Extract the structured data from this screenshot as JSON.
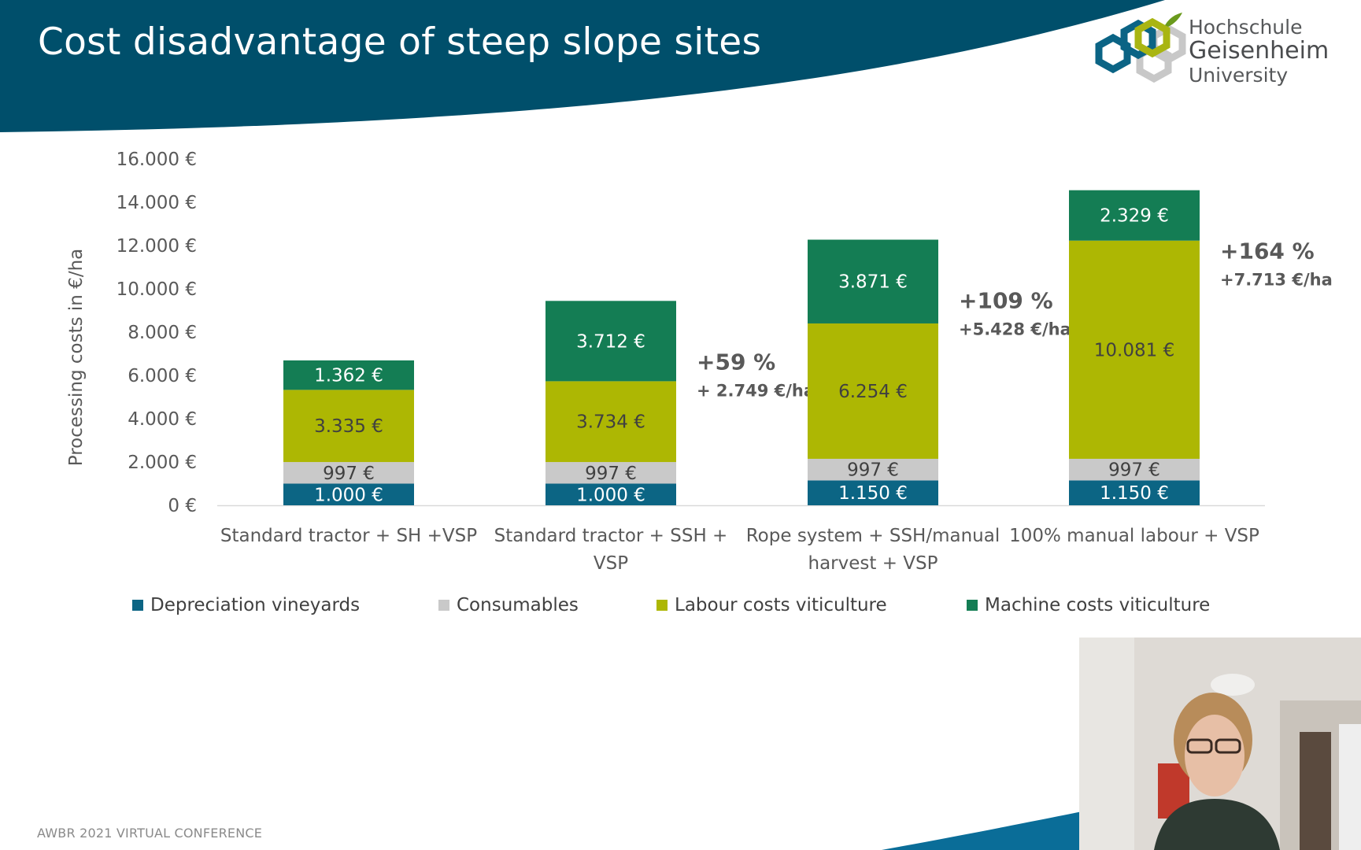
{
  "slide": {
    "title": "Cost disadvantage of steep slope sites",
    "footer": "AWBR 2021 VIRTUAL CONFERENCE",
    "logo": {
      "line1": "Hochschule",
      "line2": "Geisenheim",
      "line3": "University",
      "icon": "hexagon-logo-icon"
    },
    "colors": {
      "header_band": "#004f6b",
      "background": "#ffffff",
      "footer_wave": "#0a6d98"
    }
  },
  "chart_data": {
    "type": "bar",
    "stacked": true,
    "title": "",
    "xlabel": "",
    "ylabel": "Processing costs in €/ha",
    "ylim": [
      0,
      16000
    ],
    "yticks": [
      "16.000 €",
      "14.000 €",
      "12.000 €",
      "10.000 €",
      "8.000 €",
      "6.000 €",
      "4.000 €",
      "2.000 €",
      "0 €"
    ],
    "ytick_values": [
      16000,
      14000,
      12000,
      10000,
      8000,
      6000,
      4000,
      2000,
      0
    ],
    "categories": [
      [
        "Standard tractor + SH +VSP"
      ],
      [
        "Standard tractor + SSH +",
        "VSP"
      ],
      [
        "Rope system + SSH/manual",
        "harvest + VSP"
      ],
      [
        "100% manual labour + VSP"
      ]
    ],
    "series": [
      {
        "name": "Depreciation vineyards",
        "color": "#0c6584",
        "label_color": "#ffffff",
        "values": [
          1000,
          1000,
          1150,
          1150
        ],
        "labels": [
          "1.000 €",
          "1.000 €",
          "1.150 €",
          "1.150 €"
        ]
      },
      {
        "name": "Consumables",
        "color": "#c9c9c9",
        "label_color": "#404040",
        "values": [
          997,
          997,
          997,
          997
        ],
        "labels": [
          "997 €",
          "997 €",
          "997 €",
          "997 €"
        ]
      },
      {
        "name": "Labour costs viticulture",
        "color": "#adb703",
        "label_color": "#404040",
        "values": [
          3335,
          3734,
          6254,
          10081
        ],
        "labels": [
          "3.335 €",
          "3.734 €",
          "6.254 €",
          "10.081 €"
        ]
      },
      {
        "name": "Machine costs viticulture",
        "color": "#147d54",
        "label_color": "#ffffff",
        "values": [
          1362,
          3712,
          3871,
          2329
        ],
        "labels": [
          "1.362 €",
          "3.712 €",
          "3.871 €",
          "2.329 €"
        ]
      }
    ],
    "annotations": [
      null,
      {
        "pct": "+59 %",
        "abs": "+ 2.749 €/ha"
      },
      {
        "pct": "+109 %",
        "abs": "+5.428 €/ha"
      },
      {
        "pct": "+164 %",
        "abs": "+7.713 €/ha"
      }
    ],
    "legend_position": "bottom",
    "grid": false
  },
  "webcam": {
    "icon": "presenter-video-icon"
  }
}
